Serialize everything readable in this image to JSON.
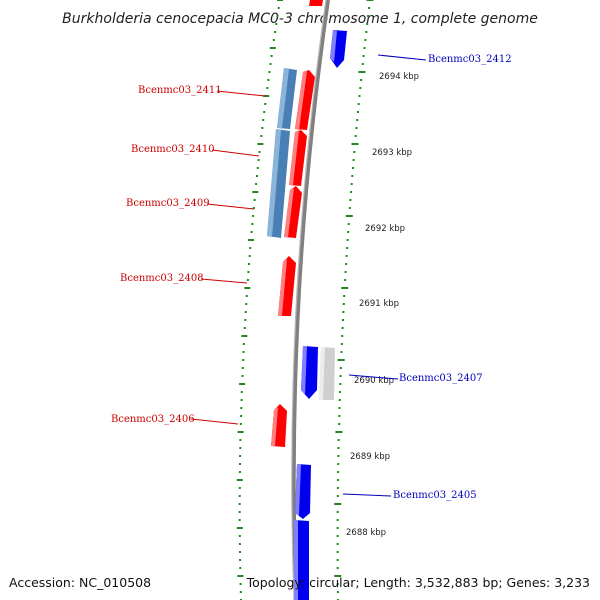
{
  "title": "Burkholderia cenocepacia MC0-3 chromosome 1, complete genome",
  "footer": {
    "accession": "Accession: NC_010508",
    "topology": "Topology: circular; Length: 3,532,883 bp; Genes: 3,233"
  },
  "colors": {
    "forward_gene": "#ff0000",
    "reverse_gene": "#0000ee",
    "cds_blue": "#4a7fb5",
    "other_gene": "#cfcfcf",
    "backbone": "#808080",
    "tick": "#228822",
    "label_left": "#cc0000",
    "label_right": "#0000bb"
  },
  "kbp_labels": [
    "2694 kbp",
    "2693 kbp",
    "2692 kbp",
    "2691 kbp",
    "2690 kbp",
    "2689 kbp",
    "2688 kbp"
  ],
  "gene_labels": {
    "left": [
      "Bcenmc03_2411",
      "Bcenmc03_2410",
      "Bcenmc03_2409",
      "Bcenmc03_2408",
      "Bcenmc03_2406"
    ],
    "right": [
      "Bcenmc03_2412",
      "Bcenmc03_2407",
      "Bcenmc03_2405"
    ]
  }
}
